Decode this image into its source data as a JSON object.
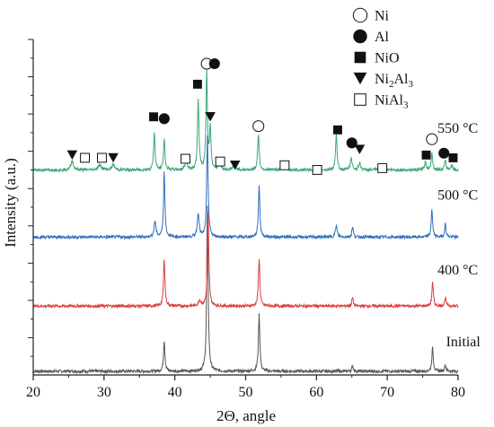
{
  "chart_data": {
    "type": "line",
    "title": "",
    "xlabel": "2Θ, angle",
    "ylabel": "Intensity (a.u.)",
    "xlim": [
      20,
      80
    ],
    "x_ticks": [
      "20",
      "30",
      "40",
      "50",
      "60",
      "70",
      "80"
    ],
    "grid": false,
    "legend_position": "top-right",
    "legend": [
      {
        "symbol": "open-circle",
        "label": "Ni"
      },
      {
        "symbol": "filled-circle",
        "label": "Al"
      },
      {
        "symbol": "filled-square",
        "label": "NiO"
      },
      {
        "symbol": "filled-triangle-down",
        "label": "Ni2Al3",
        "display": [
          "Ni",
          "2",
          "Al",
          "3"
        ]
      },
      {
        "symbol": "open-square",
        "label": "NiAl3",
        "display": [
          "NiAl",
          "3",
          "",
          ""
        ]
      }
    ],
    "series": [
      {
        "name": "Initial",
        "color": "#555555",
        "baseline": 0.4,
        "peaks": [
          {
            "x": 38.5,
            "h": 3.3,
            "w": 0.12
          },
          {
            "x": 44.6,
            "h": 17.6,
            "w": 0.12
          },
          {
            "x": 51.9,
            "h": 6.1,
            "w": 0.12
          },
          {
            "x": 65.1,
            "h": 0.6,
            "w": 0.12
          },
          {
            "x": 76.4,
            "h": 2.5,
            "w": 0.12
          },
          {
            "x": 78.2,
            "h": 0.7,
            "w": 0.12
          }
        ]
      },
      {
        "name": "400 °C",
        "color": "#d94040",
        "baseline": 7.4,
        "peaks": [
          {
            "x": 38.5,
            "h": 5.1,
            "w": 0.12
          },
          {
            "x": 43.5,
            "h": 0.6,
            "w": 0.2
          },
          {
            "x": 44.7,
            "h": 9.9,
            "w": 0.12
          },
          {
            "x": 51.9,
            "h": 5.1,
            "w": 0.12
          },
          {
            "x": 65.1,
            "h": 0.9,
            "w": 0.12
          },
          {
            "x": 76.4,
            "h": 2.5,
            "w": 0.12
          },
          {
            "x": 78.2,
            "h": 0.9,
            "w": 0.12
          }
        ]
      },
      {
        "name": "500 °C",
        "color": "#2f6fc1",
        "baseline": 14.8,
        "peaks": [
          {
            "x": 37.2,
            "h": 1.7,
            "w": 0.15
          },
          {
            "x": 38.5,
            "h": 7.0,
            "w": 0.12
          },
          {
            "x": 43.3,
            "h": 2.6,
            "w": 0.15
          },
          {
            "x": 44.6,
            "h": 10.7,
            "w": 0.12
          },
          {
            "x": 51.9,
            "h": 5.5,
            "w": 0.12
          },
          {
            "x": 62.8,
            "h": 1.2,
            "w": 0.15
          },
          {
            "x": 65.1,
            "h": 1.1,
            "w": 0.12
          },
          {
            "x": 76.3,
            "h": 2.9,
            "w": 0.12
          },
          {
            "x": 78.2,
            "h": 1.4,
            "w": 0.12
          }
        ]
      },
      {
        "name": "550 °C",
        "color": "#3aa874",
        "baseline": 22.0,
        "peaks": [
          {
            "x": 25.5,
            "h": 1.0,
            "w": 0.2
          },
          {
            "x": 29.4,
            "h": 0.5,
            "w": 0.3
          },
          {
            "x": 31.3,
            "h": 0.6,
            "w": 0.2
          },
          {
            "x": 37.1,
            "h": 4.0,
            "w": 0.12
          },
          {
            "x": 38.5,
            "h": 3.3,
            "w": 0.12
          },
          {
            "x": 41.6,
            "h": 0.9,
            "w": 0.2
          },
          {
            "x": 43.3,
            "h": 7.6,
            "w": 0.12
          },
          {
            "x": 44.5,
            "h": 10.6,
            "w": 0.12
          },
          {
            "x": 45.0,
            "h": 4.4,
            "w": 0.12
          },
          {
            "x": 46.3,
            "h": 0.8,
            "w": 0.2
          },
          {
            "x": 48.4,
            "h": 0.6,
            "w": 0.2
          },
          {
            "x": 51.8,
            "h": 3.9,
            "w": 0.12
          },
          {
            "x": 55.4,
            "h": 0.4,
            "w": 0.3
          },
          {
            "x": 62.8,
            "h": 3.8,
            "w": 0.12
          },
          {
            "x": 64.9,
            "h": 1.3,
            "w": 0.15
          },
          {
            "x": 66.1,
            "h": 0.8,
            "w": 0.15
          },
          {
            "x": 69.4,
            "h": 0.3,
            "w": 0.3
          },
          {
            "x": 75.4,
            "h": 0.8,
            "w": 0.15
          },
          {
            "x": 76.3,
            "h": 1.9,
            "w": 0.12
          },
          {
            "x": 78.2,
            "h": 1.0,
            "w": 0.12
          },
          {
            "x": 79.1,
            "h": 0.5,
            "w": 0.15
          }
        ]
      }
    ],
    "series_labels": [
      {
        "text": "Initial",
        "x": 78.3,
        "y": 3.1
      },
      {
        "text": "400 °C",
        "x": 77.1,
        "y": 10.8
      },
      {
        "text": "500 °C",
        "x": 77.1,
        "y": 18.8
      },
      {
        "text": "550 °C",
        "x": 77.1,
        "y": 26.0
      }
    ],
    "phase_markers": [
      {
        "symbol": "filled-triangle-down",
        "x": 25.5,
        "y": 23.6
      },
      {
        "symbol": "open-square",
        "x": 27.3,
        "y": 23.3
      },
      {
        "symbol": "open-square",
        "x": 29.7,
        "y": 23.3
      },
      {
        "symbol": "filled-triangle-down",
        "x": 31.3,
        "y": 23.3
      },
      {
        "symbol": "filled-square",
        "x": 37.0,
        "y": 27.7
      },
      {
        "symbol": "filled-circle",
        "x": 38.5,
        "y": 27.5
      },
      {
        "symbol": "open-square",
        "x": 41.5,
        "y": 23.2
      },
      {
        "symbol": "filled-square",
        "x": 43.2,
        "y": 31.2
      },
      {
        "symbol": "open-circle",
        "x": 44.5,
        "y": 33.4
      },
      {
        "symbol": "filled-circle",
        "x": 45.6,
        "y": 33.4
      },
      {
        "symbol": "filled-triangle-down",
        "x": 45.0,
        "y": 27.7
      },
      {
        "symbol": "open-square",
        "x": 46.4,
        "y": 22.9
      },
      {
        "symbol": "filled-triangle-down",
        "x": 48.5,
        "y": 22.5
      },
      {
        "symbol": "open-circle",
        "x": 51.8,
        "y": 26.7
      },
      {
        "symbol": "open-square",
        "x": 55.5,
        "y": 22.5
      },
      {
        "symbol": "open-square",
        "x": 60.1,
        "y": 22.0
      },
      {
        "symbol": "filled-square",
        "x": 63.0,
        "y": 26.3
      },
      {
        "symbol": "filled-circle",
        "x": 65.0,
        "y": 24.9
      },
      {
        "symbol": "filled-triangle-down",
        "x": 66.1,
        "y": 24.2
      },
      {
        "symbol": "open-square",
        "x": 69.3,
        "y": 22.2
      },
      {
        "symbol": "filled-square",
        "x": 75.5,
        "y": 23.6
      },
      {
        "symbol": "open-circle",
        "x": 76.3,
        "y": 25.3
      },
      {
        "symbol": "filled-circle",
        "x": 78.0,
        "y": 23.8
      },
      {
        "symbol": "filled-square",
        "x": 79.3,
        "y": 23.3
      }
    ]
  }
}
